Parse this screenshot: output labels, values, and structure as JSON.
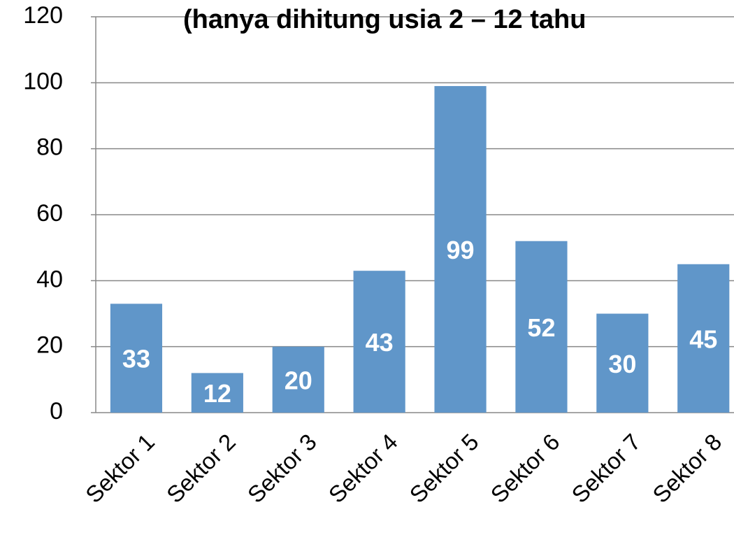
{
  "chart_data": {
    "type": "bar",
    "title": "(hanya dihitung usia 2 – 12 tahu",
    "categories": [
      "Sektor 1",
      "Sektor 2",
      "Sektor 3",
      "Sektor 4",
      "Sektor 5",
      "Sektor 6",
      "Sektor 7",
      "Sektor 8"
    ],
    "values": [
      33,
      12,
      20,
      43,
      99,
      52,
      30,
      45
    ],
    "color": "#6096c9",
    "ylim": [
      0,
      120
    ],
    "yticks": [
      0,
      20,
      40,
      60,
      80,
      100,
      120
    ],
    "grid": true
  }
}
